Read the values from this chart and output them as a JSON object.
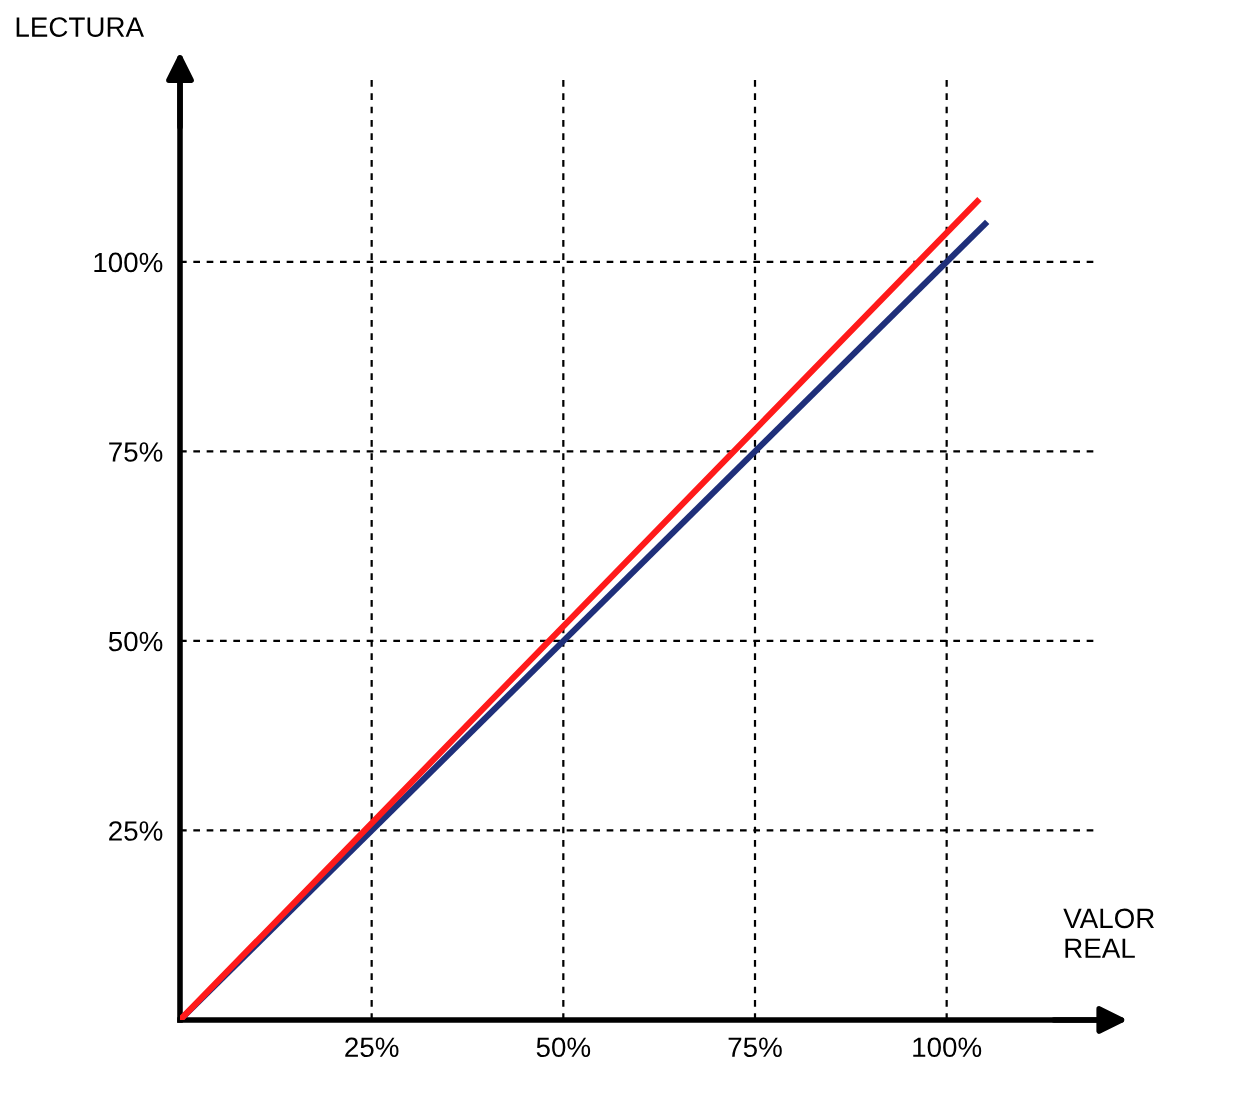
{
  "chart_data": {
    "type": "line",
    "xlabel": "VALOR\nREAL",
    "ylabel": "LECTURA",
    "series": [
      {
        "x": [
          0,
          105
        ],
        "values": [
          0,
          105
        ],
        "color": "#1f2f7a"
      },
      {
        "x": [
          0,
          104
        ],
        "values": [
          0,
          108
        ],
        "color": "#ff1a1a"
      }
    ],
    "xlim": [
      0,
      120
    ],
    "ylim": [
      0,
      124
    ],
    "xticks": [
      {
        "value": 25,
        "label": "25%"
      },
      {
        "value": 50,
        "label": "50%"
      },
      {
        "value": 75,
        "label": "75%"
      },
      {
        "value": 100,
        "label": "100%"
      }
    ],
    "yticks": [
      {
        "value": 25,
        "label": "25%"
      },
      {
        "value": 50,
        "label": "50%"
      },
      {
        "value": 75,
        "label": "75%"
      },
      {
        "value": 100,
        "label": "100%"
      }
    ],
    "grid": true,
    "line_style": "solid",
    "marker": "none"
  }
}
